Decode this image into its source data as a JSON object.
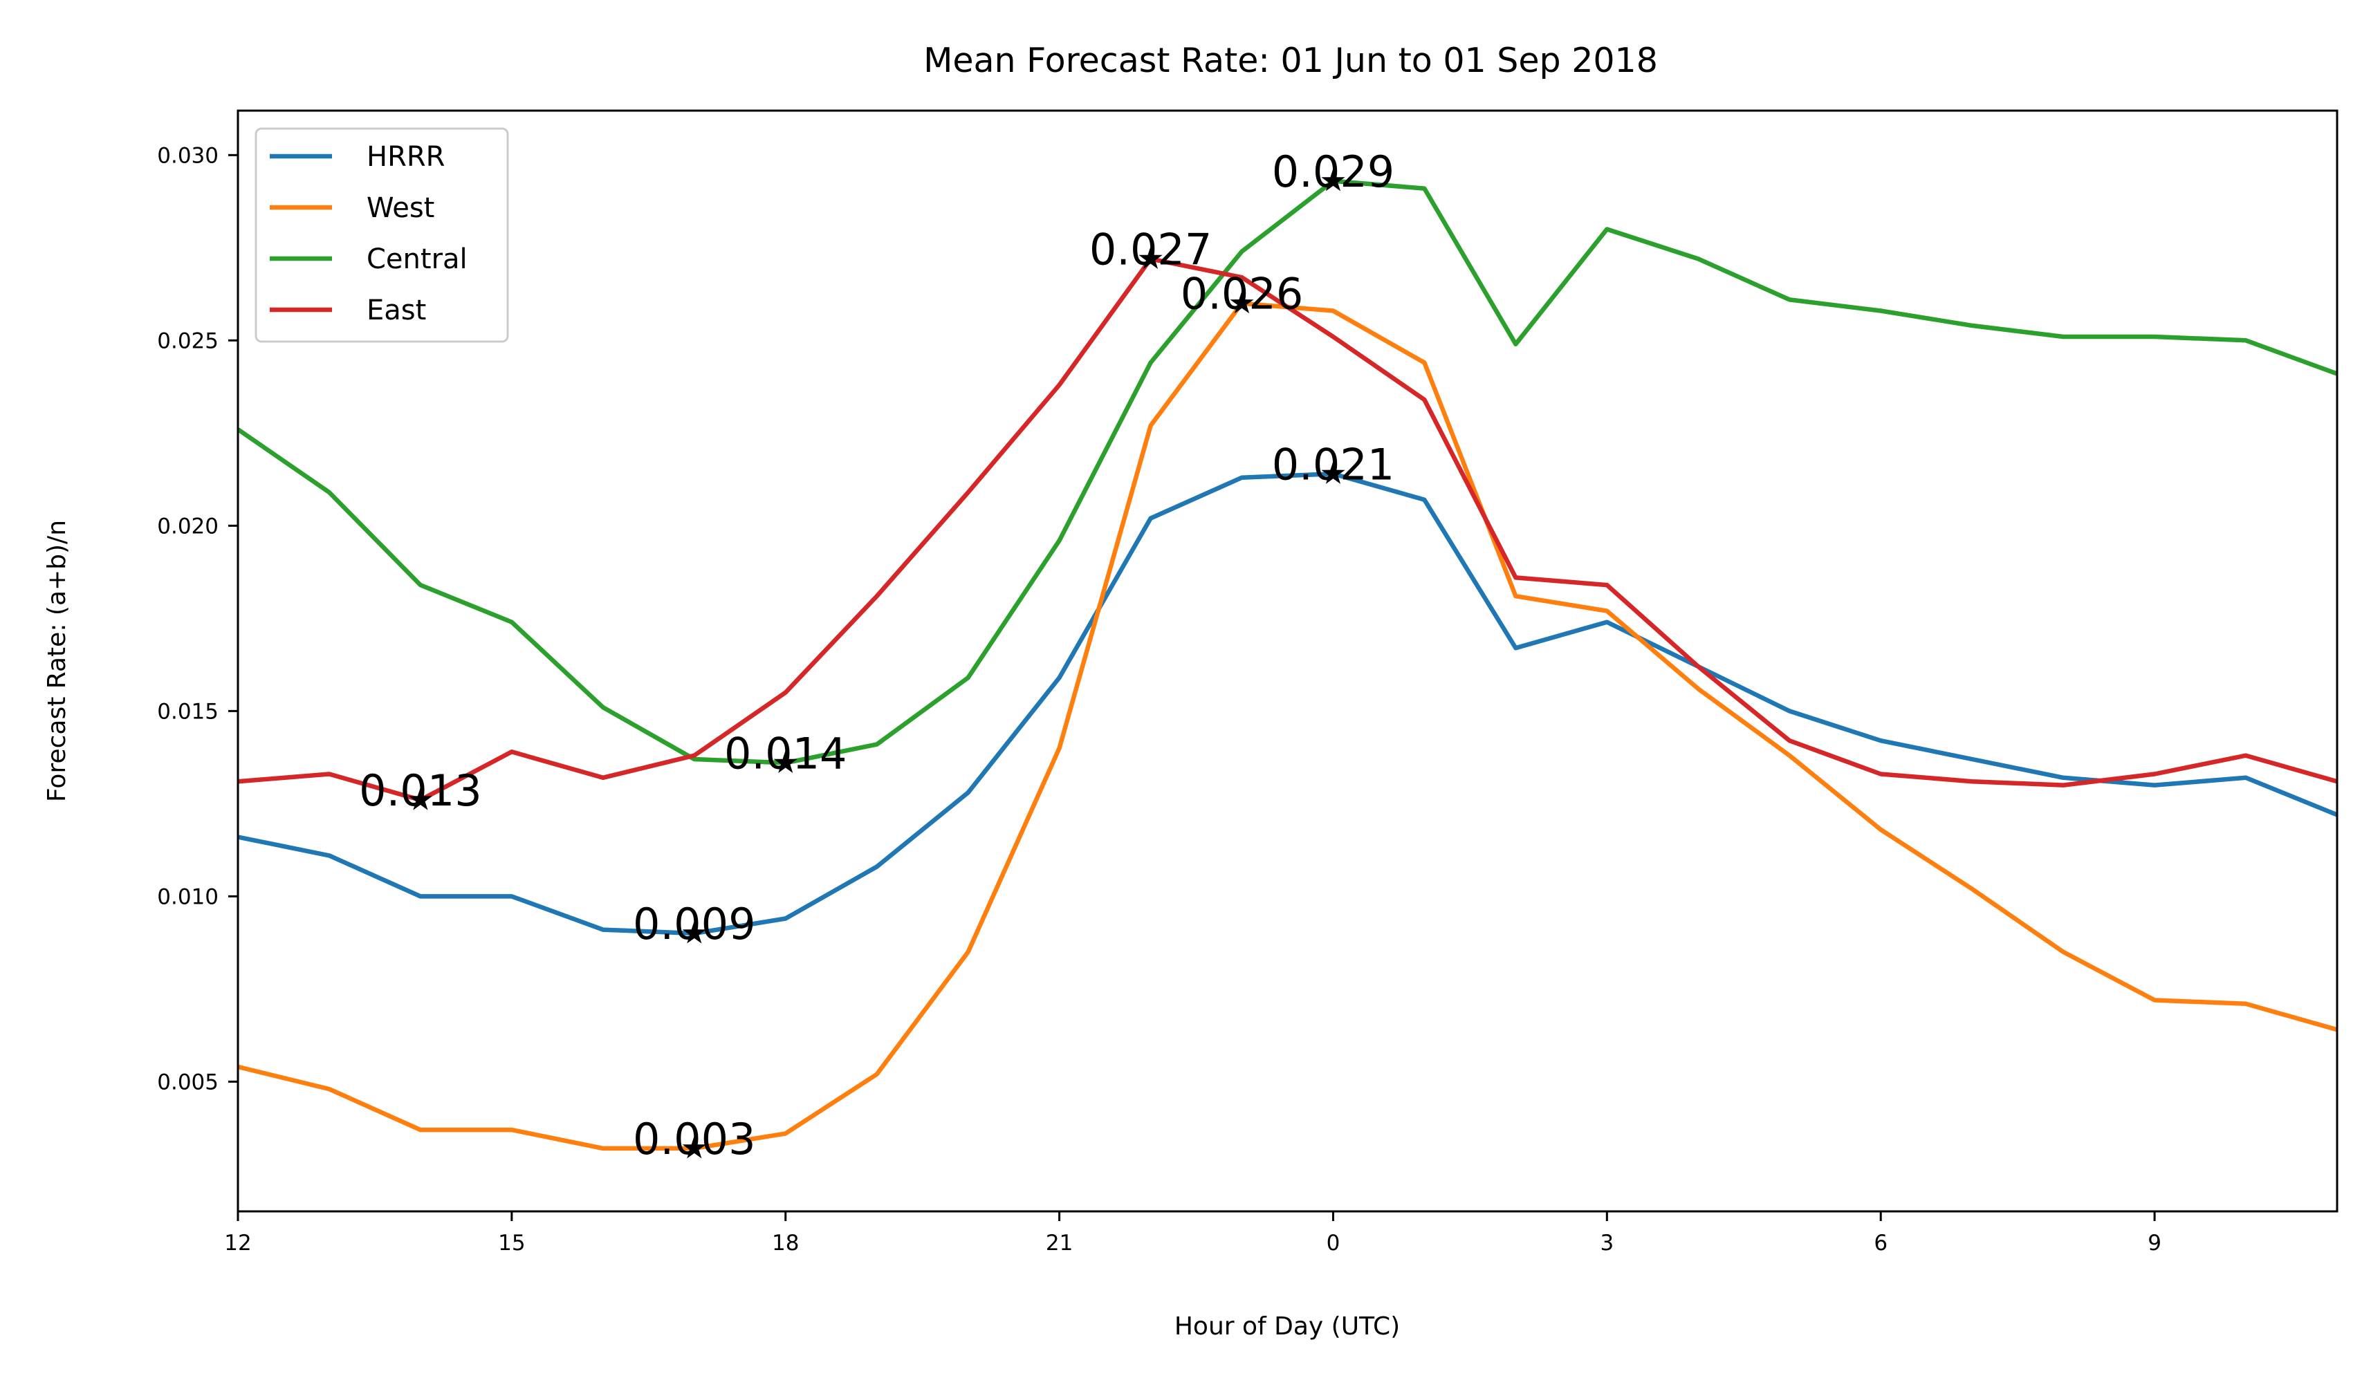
{
  "chart_data": {
    "type": "line",
    "title": "Mean Forecast Rate: 01 Jun to 01 Sep 2018",
    "xlabel": "Hour of Day (UTC)",
    "ylabel": "Forecast Rate: (a+b)/n",
    "x": [
      "12",
      "13",
      "14",
      "15",
      "16",
      "17",
      "18",
      "19",
      "20",
      "21",
      "22",
      "23",
      "0",
      "1",
      "2",
      "3",
      "4",
      "5",
      "6",
      "7",
      "8",
      "9",
      "10",
      "11"
    ],
    "xticks": [
      "12",
      "15",
      "18",
      "21",
      "0",
      "3",
      "6",
      "9"
    ],
    "yticks": [
      "0.005",
      "0.010",
      "0.015",
      "0.020",
      "0.025",
      "0.030"
    ],
    "ylim": [
      0.0015,
      0.0312
    ],
    "grid": false,
    "legend_position": "upper-left",
    "series": [
      {
        "name": "HRRR",
        "color": "#1f77b4",
        "values": [
          0.0116,
          0.0111,
          0.01,
          0.01,
          0.0091,
          0.009,
          0.0094,
          0.0108,
          0.0128,
          0.0159,
          0.0202,
          0.0213,
          0.0214,
          0.0207,
          0.0167,
          0.0174,
          0.0162,
          0.015,
          0.0142,
          0.0137,
          0.0132,
          0.013,
          0.0132,
          0.0122
        ]
      },
      {
        "name": "West",
        "color": "#ff7f0e",
        "values": [
          0.0054,
          0.0048,
          0.0037,
          0.0037,
          0.0032,
          0.0032,
          0.0036,
          0.0052,
          0.0085,
          0.014,
          0.0227,
          0.026,
          0.0258,
          0.0244,
          0.0181,
          0.0177,
          0.0156,
          0.0138,
          0.0118,
          0.0102,
          0.0085,
          0.0072,
          0.0071,
          0.0064
        ]
      },
      {
        "name": "Central",
        "color": "#2ca02c",
        "values": [
          0.0226,
          0.0209,
          0.0184,
          0.0174,
          0.0151,
          0.0137,
          0.0136,
          0.0141,
          0.0159,
          0.0196,
          0.0244,
          0.0274,
          0.0293,
          0.0291,
          0.0249,
          0.028,
          0.0272,
          0.0261,
          0.0258,
          0.0254,
          0.0251,
          0.0251,
          0.025,
          0.0241
        ]
      },
      {
        "name": "East",
        "color": "#d62728",
        "values": [
          0.0131,
          0.0133,
          0.0126,
          0.0139,
          0.0132,
          0.0138,
          0.0155,
          0.0181,
          0.0209,
          0.0238,
          0.0272,
          0.0267,
          0.0251,
          0.0234,
          0.0186,
          0.0184,
          0.0162,
          0.0142,
          0.0133,
          0.0131,
          0.013,
          0.0133,
          0.0138,
          0.0131
        ]
      }
    ],
    "annotations": [
      {
        "text": "0.013",
        "x": 2,
        "y": 0.0126
      },
      {
        "text": "0.014",
        "x": 6,
        "y": 0.0136
      },
      {
        "text": "0.009",
        "x": 5,
        "y": 0.009
      },
      {
        "text": "0.003",
        "x": 5,
        "y": 0.0032
      },
      {
        "text": "0.027",
        "x": 10,
        "y": 0.0272
      },
      {
        "text": "0.026",
        "x": 11,
        "y": 0.026
      },
      {
        "text": "0.029",
        "x": 12,
        "y": 0.0293
      },
      {
        "text": "0.021",
        "x": 12,
        "y": 0.0214
      }
    ]
  }
}
